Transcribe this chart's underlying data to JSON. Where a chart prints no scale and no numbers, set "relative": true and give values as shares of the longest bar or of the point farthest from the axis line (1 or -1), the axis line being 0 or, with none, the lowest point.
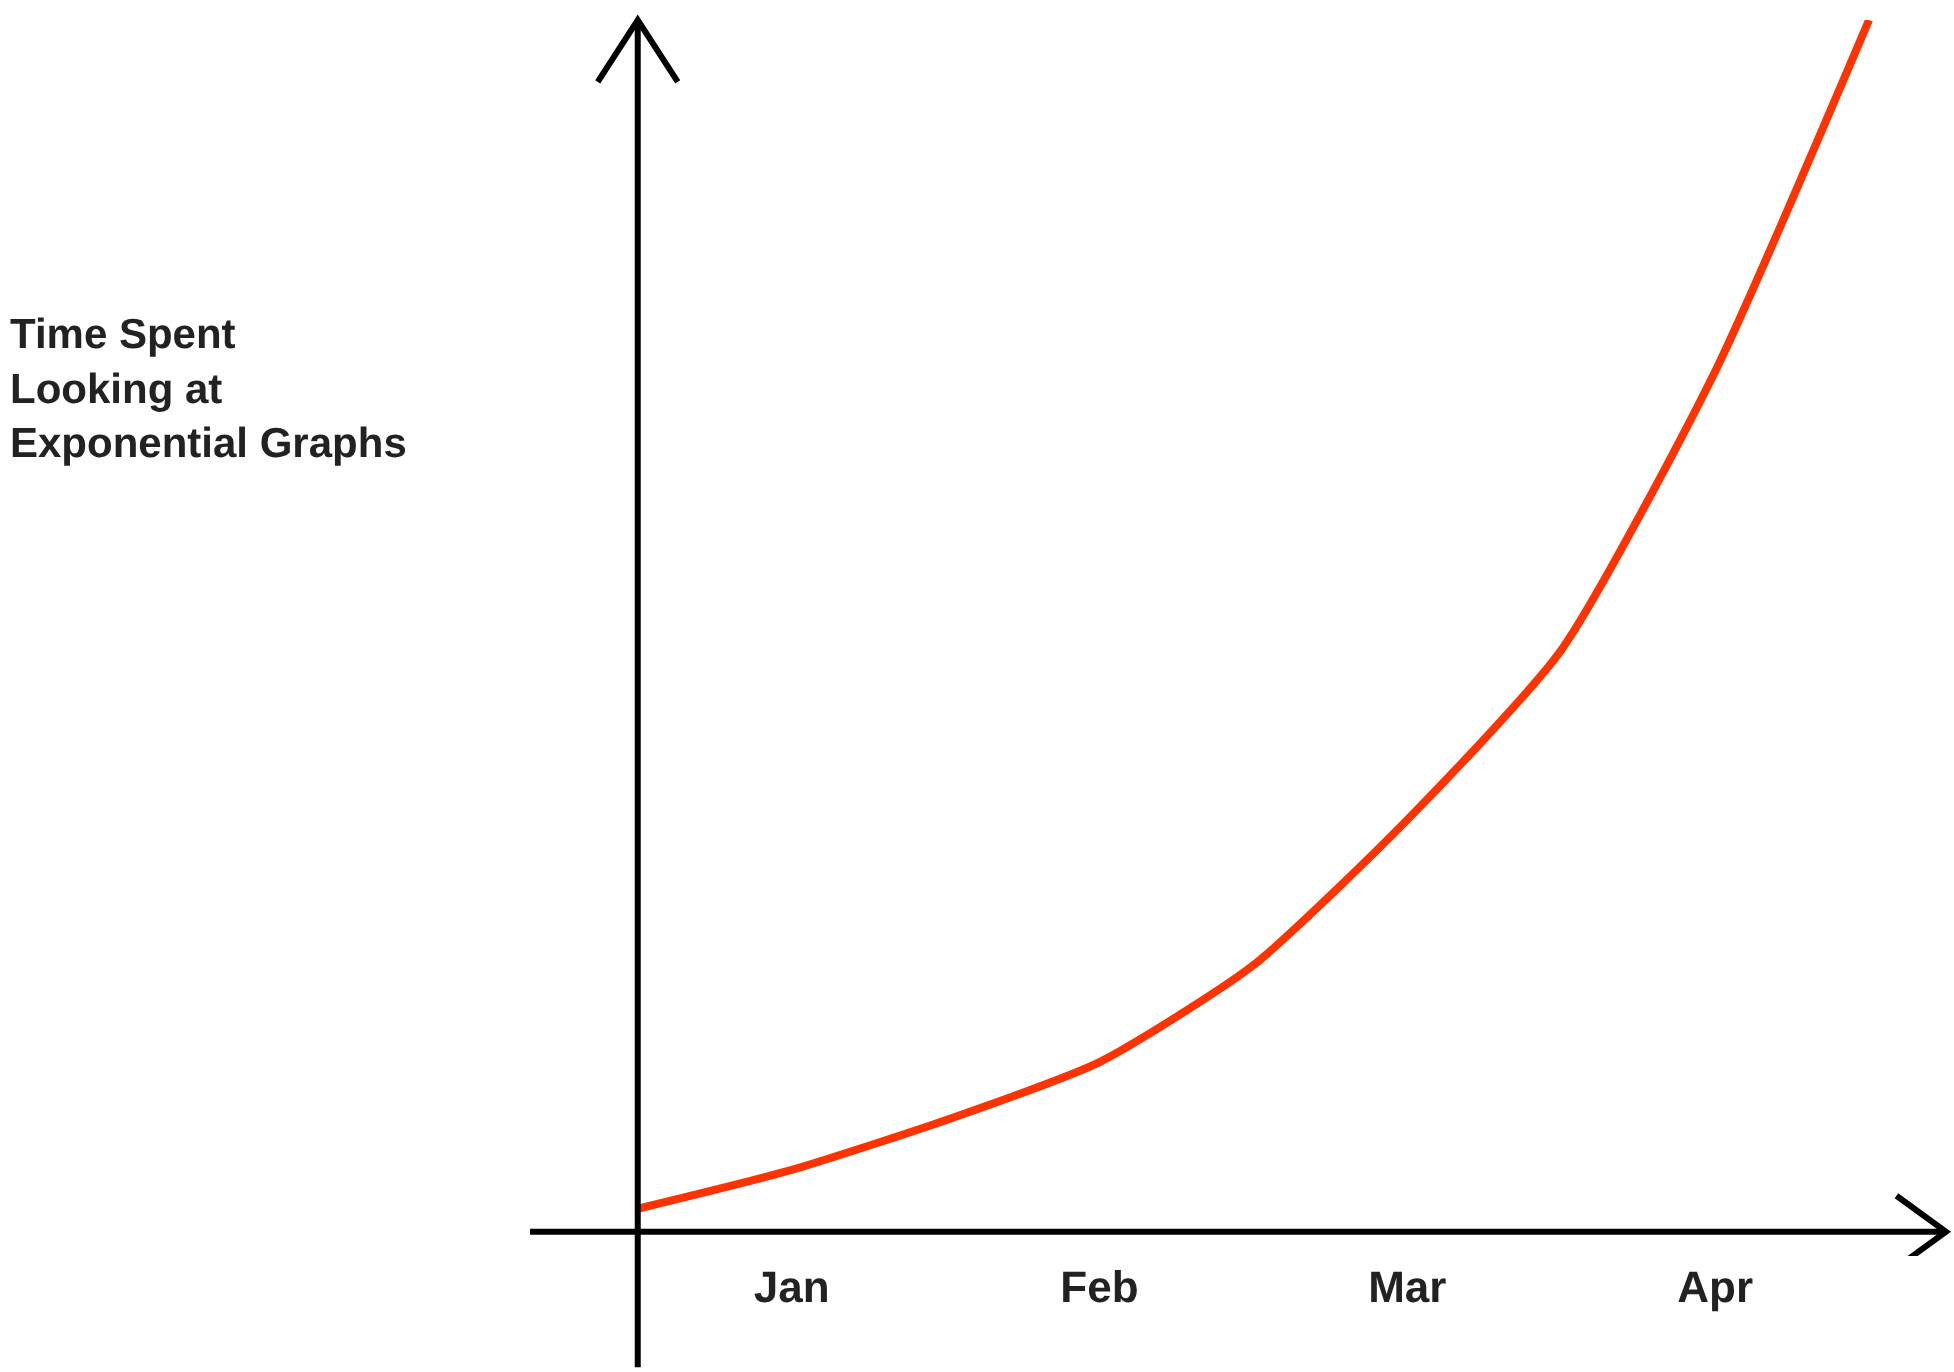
{
  "chart_data": {
    "type": "line",
    "relative": true,
    "ylabel": "Time Spent\nLooking at\nExponential Graphs",
    "categories": [
      null,
      "Jan",
      null,
      "Feb",
      null,
      "Mar",
      null,
      "Apr",
      null
    ],
    "series": [
      {
        "color": "#ff3300",
        "values": [
          0.019,
          0.051,
          0.092,
          0.14,
          0.22,
          0.34,
          0.48,
          0.71,
          1.0
        ]
      }
    ],
    "marker": "none",
    "line_style": "solid"
  }
}
